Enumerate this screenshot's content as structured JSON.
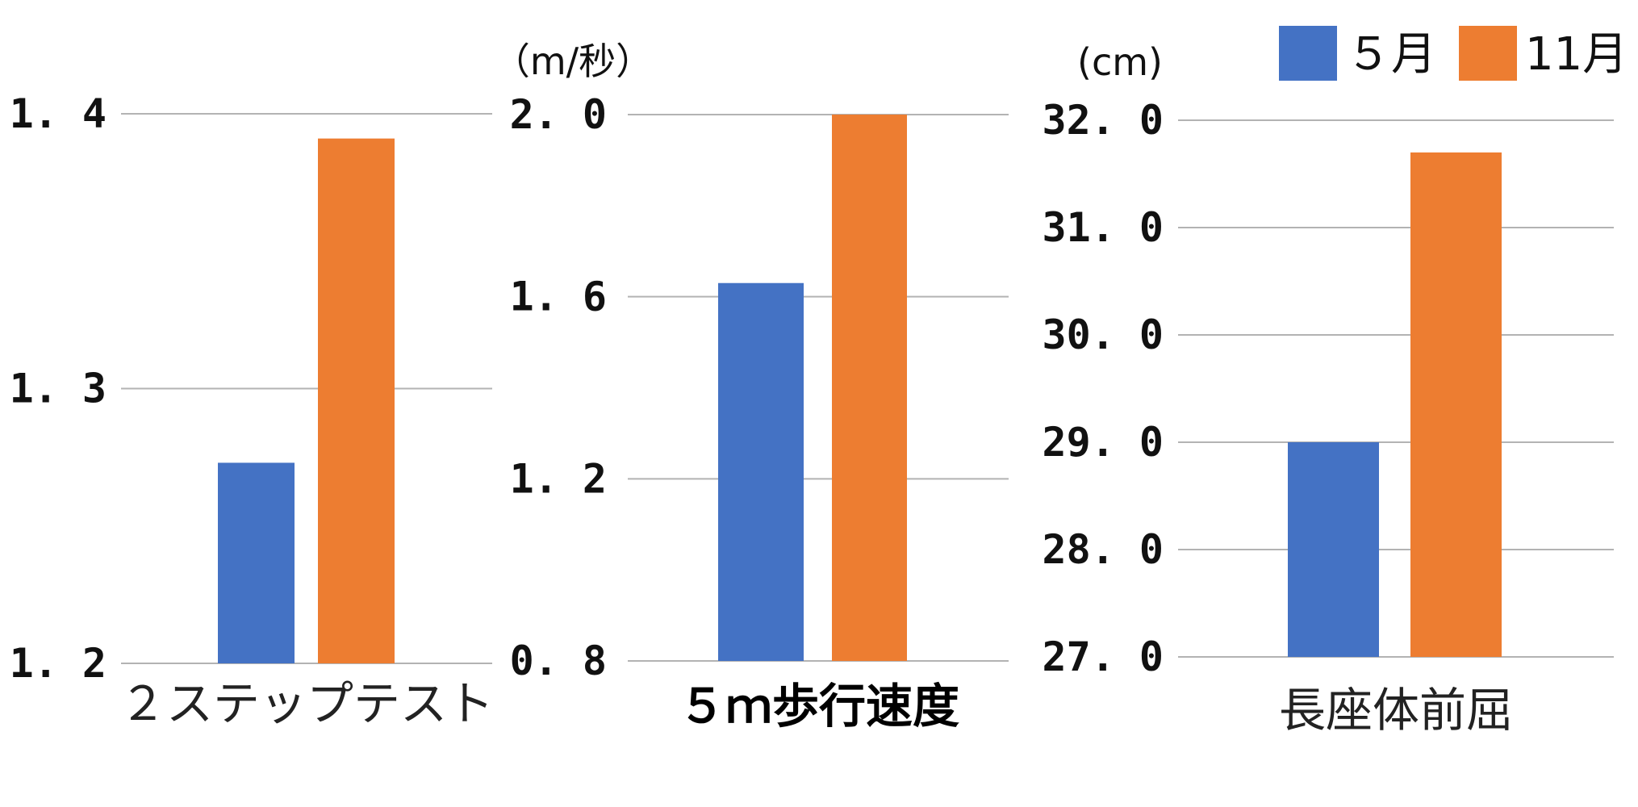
{
  "chart_data": [
    {
      "type": "bar",
      "categories": [
        "２ステップテスト"
      ],
      "series": [
        {
          "name": "５月",
          "values": [
            1.273
          ]
        },
        {
          "name": "11月",
          "values": [
            1.391
          ]
        }
      ],
      "unit": "",
      "ylim": [
        1.2,
        1.4
      ],
      "yticks": [
        "1. 4",
        "1. 3",
        "1. 2"
      ],
      "grid": true
    },
    {
      "type": "bar",
      "categories": [
        "５ｍ歩行速度"
      ],
      "series": [
        {
          "name": "５月",
          "values": [
            1.63
          ]
        },
        {
          "name": "11月",
          "values": [
            2.0
          ]
        }
      ],
      "unit": "（m/秒）",
      "ylim": [
        0.8,
        2.0
      ],
      "yticks": [
        "2. 0",
        "1. 6",
        "1. 2",
        "0. 8"
      ],
      "grid": true
    },
    {
      "type": "bar",
      "categories": [
        "長座体前屈"
      ],
      "series": [
        {
          "name": "５月",
          "values": [
            29.0
          ]
        },
        {
          "name": "11月",
          "values": [
            31.7
          ]
        }
      ],
      "unit": "(cm)",
      "ylim": [
        27.0,
        32.0
      ],
      "yticks": [
        "32. 0",
        "31. 0",
        "30. 0",
        "29. 0",
        "28. 0",
        "27. 0"
      ],
      "grid": true
    }
  ],
  "legend": {
    "position": "top-right",
    "items": [
      {
        "label": "５月",
        "color": "#4472c4"
      },
      {
        "label": "11月",
        "color": "#ed7d31"
      }
    ]
  },
  "colors": {
    "may": "#4472c4",
    "nov": "#ed7d31",
    "grid": "#b3b3b3"
  }
}
